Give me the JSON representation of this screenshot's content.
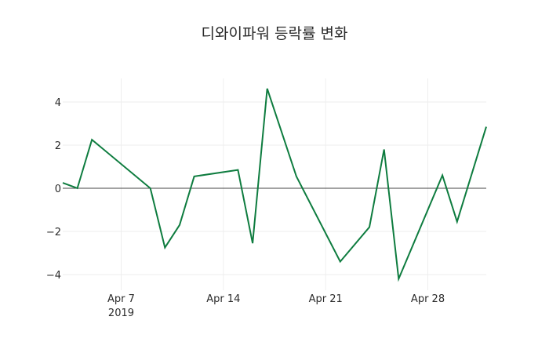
{
  "chart_data": {
    "type": "line",
    "title": "디와이파워 등락률 변화",
    "xlabel": "",
    "ylabel": "",
    "x": [
      "2019-04-03",
      "2019-04-04",
      "2019-04-05",
      "2019-04-09",
      "2019-04-10",
      "2019-04-11",
      "2019-04-12",
      "2019-04-15",
      "2019-04-16",
      "2019-04-17",
      "2019-04-19",
      "2019-04-22",
      "2019-04-24",
      "2019-04-25",
      "2019-04-26",
      "2019-04-29",
      "2019-04-30",
      "2019-05-02"
    ],
    "series": [
      {
        "name": "등락률",
        "color": "#0e7c3f",
        "values": [
          0.25,
          0.0,
          2.25,
          0.0,
          -2.75,
          -1.7,
          0.55,
          0.85,
          -2.55,
          4.62,
          0.55,
          -3.4,
          -1.8,
          1.8,
          -4.2,
          0.6,
          -1.55,
          2.85
        ]
      }
    ],
    "ylim": [
      -4.6,
      5.0
    ],
    "xlim": [
      "2019-04-03",
      "2019-05-02"
    ],
    "yticks": [
      -4,
      -2,
      0,
      2,
      4
    ],
    "ytick_labels": [
      "−4",
      "−2",
      "0",
      "2",
      "4"
    ],
    "xticks": [
      "2019-04-07",
      "2019-04-14",
      "2019-04-21",
      "2019-04-28"
    ],
    "xtick_labels": [
      "Apr 7",
      "Apr 14",
      "Apr 21",
      "Apr 28"
    ],
    "xtick_year_label": "2019",
    "grid": true,
    "zero_line": true,
    "legend": false
  }
}
